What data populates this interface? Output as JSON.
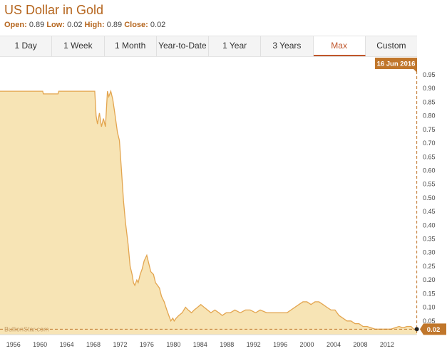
{
  "header": {
    "title": "US Dollar in Gold"
  },
  "ohlc": {
    "open_label": "Open:",
    "open": "0.89",
    "low_label": "Low:",
    "low": "0.02",
    "high_label": "High:",
    "high": "0.89",
    "close_label": "Close:",
    "close": "0.02"
  },
  "tabs": [
    {
      "label": "1 Day"
    },
    {
      "label": "1 Week"
    },
    {
      "label": "1 Month"
    },
    {
      "label": "Year-to-Date"
    },
    {
      "label": "1 Year"
    },
    {
      "label": "3 Years"
    },
    {
      "label": "Max",
      "active": true
    },
    {
      "label": "Custom"
    }
  ],
  "watermark": "BullionStar.com",
  "colors": {
    "accent": "#c0762b",
    "fill": "#f7e4b5",
    "line": "#e3a54f",
    "tab_active": "#c0562b"
  },
  "chart_data": {
    "type": "area",
    "title": "US Dollar in Gold",
    "xlabel": "",
    "ylabel": "",
    "date_marker": "16 Jun 2016",
    "last_value_label": "0.02",
    "xlim": [
      1954,
      2016.5
    ],
    "ylim": [
      0,
      0.95
    ],
    "x_ticks": [
      "1956",
      "1960",
      "1964",
      "1968",
      "1972",
      "1976",
      "1980",
      "1984",
      "1988",
      "1992",
      "1996",
      "2000",
      "2004",
      "2008",
      "2012"
    ],
    "y_ticks": [
      "0.05",
      "0.10",
      "0.15",
      "0.20",
      "0.25",
      "0.30",
      "0.35",
      "0.40",
      "0.45",
      "0.50",
      "0.55",
      "0.60",
      "0.65",
      "0.70",
      "0.75",
      "0.80",
      "0.85",
      "0.90",
      "0.95"
    ],
    "grid": false,
    "legend": "none",
    "x": [
      1954,
      1960.4,
      1960.5,
      1962.7,
      1962.8,
      1968.2,
      1968.4,
      1968.6,
      1968.9,
      1969.2,
      1969.5,
      1969.8,
      1970.1,
      1970.3,
      1970.6,
      1970.9,
      1971.2,
      1971.6,
      1971.9,
      1972.2,
      1972.5,
      1972.8,
      1973.2,
      1973.5,
      1973.8,
      1974.0,
      1974.2,
      1974.5,
      1974.7,
      1975.0,
      1975.3,
      1975.6,
      1976.0,
      1976.3,
      1976.6,
      1977.0,
      1977.3,
      1977.6,
      1977.9,
      1978.2,
      1978.6,
      1979.0,
      1979.3,
      1979.6,
      1979.9,
      1980.1,
      1980.4,
      1980.8,
      1981.3,
      1981.8,
      1982.2,
      1982.7,
      1983.1,
      1983.6,
      1984.1,
      1984.6,
      1985.1,
      1985.6,
      1986.2,
      1986.8,
      1987.3,
      1987.9,
      1988.5,
      1989.2,
      1990.0,
      1990.8,
      1991.5,
      1992.3,
      1993.0,
      1994.0,
      1995.0,
      1996.0,
      1997.0,
      1997.6,
      1998.2,
      1998.8,
      1999.4,
      2000.0,
      2000.6,
      2001.2,
      2001.8,
      2002.4,
      2003.0,
      2003.6,
      2004.2,
      2004.8,
      2005.4,
      2006.0,
      2006.6,
      2007.2,
      2007.8,
      2008.4,
      2009.0,
      2009.6,
      2010.2,
      2010.8,
      2011.4,
      2012.0,
      2012.6,
      2013.2,
      2013.8,
      2014.4,
      2015.0,
      2015.6,
      2016.0,
      2016.46
    ],
    "values": [
      0.89,
      0.89,
      0.88,
      0.88,
      0.89,
      0.89,
      0.8,
      0.77,
      0.81,
      0.76,
      0.79,
      0.76,
      0.89,
      0.87,
      0.89,
      0.86,
      0.81,
      0.74,
      0.71,
      0.6,
      0.49,
      0.41,
      0.33,
      0.25,
      0.22,
      0.19,
      0.18,
      0.2,
      0.19,
      0.22,
      0.24,
      0.27,
      0.29,
      0.26,
      0.23,
      0.22,
      0.19,
      0.18,
      0.17,
      0.14,
      0.12,
      0.09,
      0.07,
      0.05,
      0.06,
      0.05,
      0.06,
      0.07,
      0.08,
      0.1,
      0.09,
      0.08,
      0.09,
      0.1,
      0.11,
      0.1,
      0.09,
      0.08,
      0.09,
      0.08,
      0.07,
      0.08,
      0.08,
      0.09,
      0.08,
      0.09,
      0.09,
      0.08,
      0.09,
      0.08,
      0.08,
      0.08,
      0.08,
      0.09,
      0.1,
      0.11,
      0.12,
      0.12,
      0.11,
      0.12,
      0.12,
      0.11,
      0.1,
      0.09,
      0.09,
      0.07,
      0.06,
      0.05,
      0.05,
      0.04,
      0.04,
      0.03,
      0.03,
      0.025,
      0.02,
      0.02,
      0.02,
      0.02,
      0.02,
      0.025,
      0.03,
      0.025,
      0.03,
      0.03,
      0.02,
      0.02
    ]
  }
}
